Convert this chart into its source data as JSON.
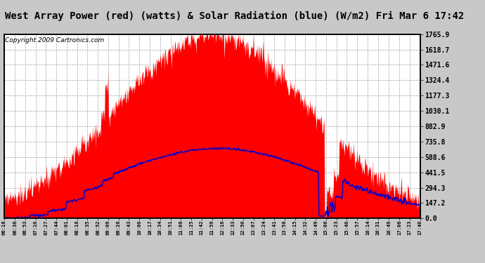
{
  "title": "West Array Power (red) (watts) & Solar Radiation (blue) (W/m2) Fri Mar 6 17:42",
  "copyright": "Copyright 2009 Cartronics.com",
  "yticks": [
    0.0,
    147.2,
    294.3,
    441.5,
    588.6,
    735.8,
    882.9,
    1030.1,
    1177.3,
    1324.4,
    1471.6,
    1618.7,
    1765.9
  ],
  "ymax": 1765.9,
  "ymin": 0.0,
  "x_labels": [
    "06:18",
    "06:36",
    "06:53",
    "07:10",
    "07:27",
    "07:44",
    "08:01",
    "08:18",
    "08:35",
    "08:52",
    "09:09",
    "09:26",
    "09:43",
    "10:00",
    "10:17",
    "10:34",
    "10:51",
    "11:08",
    "11:25",
    "11:42",
    "11:59",
    "12:16",
    "12:33",
    "12:50",
    "13:07",
    "13:24",
    "13:41",
    "13:58",
    "14:15",
    "14:32",
    "14:49",
    "15:06",
    "15:23",
    "15:40",
    "15:57",
    "16:14",
    "16:31",
    "16:49",
    "17:06",
    "17:23",
    "17:40"
  ],
  "bg_color": "#c8c8c8",
  "plot_bg": "#ffffff",
  "grid_color": "#a0a0a0",
  "red_color": "#ff0000",
  "blue_color": "#0000cc",
  "title_fontsize": 10,
  "copyright_fontsize": 6.5
}
